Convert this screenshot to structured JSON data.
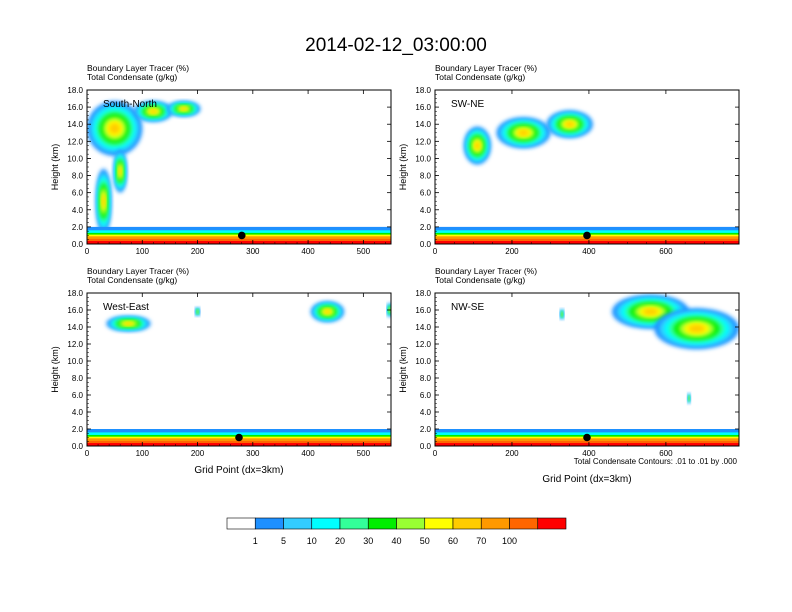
{
  "title": "2014-02-12_03:00:00",
  "colors": [
    "#ffffff",
    "#1e90ff",
    "#33ccff",
    "#00ffff",
    "#33ff99",
    "#00ee00",
    "#99ff33",
    "#ffff00",
    "#ffcc00",
    "#ff9900",
    "#ff6600",
    "#ff0000"
  ],
  "colorbar": {
    "labels": [
      "1",
      "5",
      "10",
      "20",
      "30",
      "40",
      "50",
      "60",
      "70",
      "100"
    ]
  },
  "contour_note": "Total Condensate Contours: .01 to .01 by .000",
  "chart_data": [
    {
      "type": "heatmap",
      "id": "south-north",
      "panel_label": "South-North",
      "title": [
        "Boundary Layer Tracer   (%)",
        "Total Condensate   (g/kg)"
      ],
      "ylabel": "Height (km)",
      "xlabel": "",
      "xlim": [
        0,
        550
      ],
      "ylim": [
        0,
        18
      ],
      "xticks": [
        0,
        100,
        200,
        300,
        400,
        500
      ],
      "yticks": [
        "0.0",
        "2.0",
        "4.0",
        "6.0",
        "8.0",
        "10.0",
        "12.0",
        "14.0",
        "16.0",
        "18.0"
      ],
      "marker": {
        "x": 280,
        "y": 1.0
      },
      "blobs": [
        {
          "cx": 50,
          "cy": 13.5,
          "rx": 50,
          "ry": 3.2
        },
        {
          "cx": 120,
          "cy": 15.5,
          "rx": 35,
          "ry": 1.2
        },
        {
          "cx": 175,
          "cy": 15.8,
          "rx": 30,
          "ry": 0.9
        },
        {
          "cx": 30,
          "cy": 5.0,
          "rx": 14,
          "ry": 3.8
        },
        {
          "cx": 60,
          "cy": 8.5,
          "rx": 12,
          "ry": 2.5
        },
        {
          "cx": 280,
          "cy": 0.6,
          "rx": 280,
          "ry": 0.9
        }
      ]
    },
    {
      "type": "heatmap",
      "id": "sw-ne",
      "panel_label": "SW-NE",
      "title": [
        "Boundary Layer Tracer   (%)",
        "Total Condensate   (g/kg)"
      ],
      "ylabel": "Height (km)",
      "xlabel": "",
      "xlim": [
        0,
        790
      ],
      "ylim": [
        0,
        18
      ],
      "xticks": [
        0,
        200,
        400,
        600
      ],
      "yticks": [
        "0.0",
        "2.0",
        "4.0",
        "6.0",
        "8.0",
        "10.0",
        "12.0",
        "14.0",
        "16.0",
        "18.0"
      ],
      "marker": {
        "x": 395,
        "y": 1.0
      },
      "blobs": [
        {
          "cx": 110,
          "cy": 11.5,
          "rx": 35,
          "ry": 2.2
        },
        {
          "cx": 230,
          "cy": 13.0,
          "rx": 70,
          "ry": 1.8
        },
        {
          "cx": 350,
          "cy": 14.0,
          "rx": 60,
          "ry": 1.6
        },
        {
          "cx": 395,
          "cy": 0.6,
          "rx": 395,
          "ry": 0.9
        }
      ]
    },
    {
      "type": "heatmap",
      "id": "west-east",
      "panel_label": "West-East",
      "title": [
        "Boundary Layer Tracer   (%)",
        "Total Condensate   (g/kg)"
      ],
      "ylabel": "Height (km)",
      "xlabel": "Grid Point (dx=3km)",
      "xlim": [
        0,
        550
      ],
      "ylim": [
        0,
        18
      ],
      "xticks": [
        0,
        100,
        200,
        300,
        400,
        500
      ],
      "yticks": [
        "0.0",
        "2.0",
        "4.0",
        "6.0",
        "8.0",
        "10.0",
        "12.0",
        "14.0",
        "16.0",
        "18.0"
      ],
      "marker": {
        "x": 275,
        "y": 1.0
      },
      "blobs": [
        {
          "cx": 75,
          "cy": 14.4,
          "rx": 40,
          "ry": 0.9
        },
        {
          "cx": 435,
          "cy": 15.8,
          "rx": 30,
          "ry": 1.2
        },
        {
          "cx": 200,
          "cy": 15.8,
          "rx": 4,
          "ry": 0.5
        },
        {
          "cx": 548,
          "cy": 16.0,
          "rx": 5,
          "ry": 0.8
        },
        {
          "cx": 275,
          "cy": 0.6,
          "rx": 275,
          "ry": 0.9
        }
      ]
    },
    {
      "type": "heatmap",
      "id": "nw-se",
      "panel_label": "NW-SE",
      "title": [
        "Boundary Layer Tracer   (%)",
        "Total Condensate   (g/kg)"
      ],
      "ylabel": "Height (km)",
      "xlabel": "Grid Point (dx=3km)",
      "xlim": [
        0,
        790
      ],
      "ylim": [
        0,
        18
      ],
      "xticks": [
        0,
        200,
        400,
        600
      ],
      "yticks": [
        "0.0",
        "2.0",
        "4.0",
        "6.0",
        "8.0",
        "10.0",
        "12.0",
        "14.0",
        "16.0",
        "18.0"
      ],
      "marker": {
        "x": 395,
        "y": 1.0
      },
      "blobs": [
        {
          "cx": 560,
          "cy": 15.8,
          "rx": 100,
          "ry": 2.0
        },
        {
          "cx": 680,
          "cy": 13.8,
          "rx": 110,
          "ry": 2.4
        },
        {
          "cx": 660,
          "cy": 5.6,
          "rx": 4,
          "ry": 0.6
        },
        {
          "cx": 330,
          "cy": 15.5,
          "rx": 5,
          "ry": 0.6
        },
        {
          "cx": 395,
          "cy": 0.6,
          "rx": 395,
          "ry": 0.9
        }
      ]
    }
  ]
}
